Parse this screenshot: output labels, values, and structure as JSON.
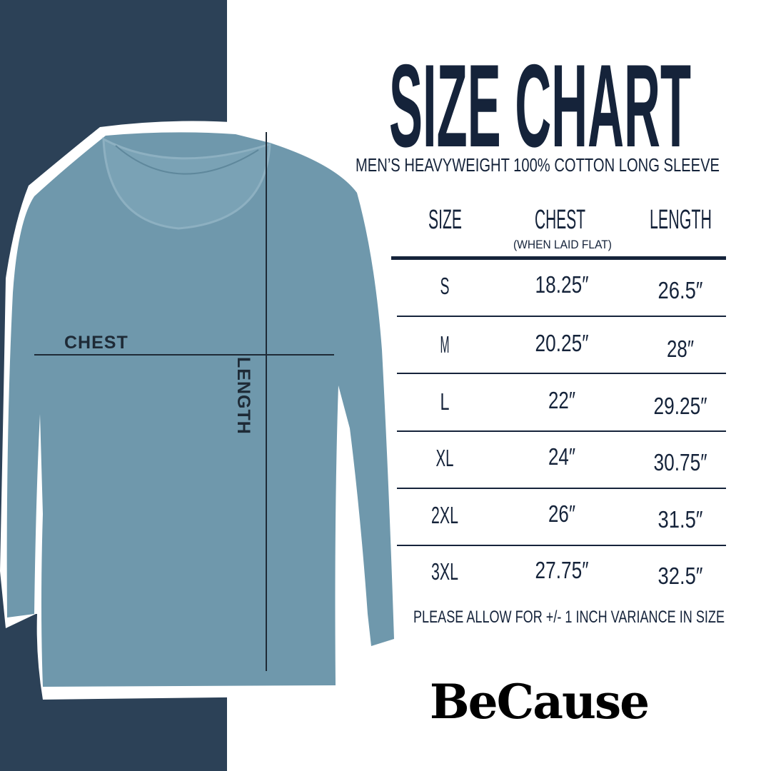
{
  "colors": {
    "panel": "#2c4157",
    "shirt": "#6f98ac",
    "text": "#15233a"
  },
  "header": {
    "title": "SIZE CHART",
    "subtitle": "MEN’S HEAVYWEIGHT 100% COTTON LONG SLEEVE"
  },
  "diagram": {
    "chest_label": "CHEST",
    "length_label": "LENGTH"
  },
  "table": {
    "columns": [
      {
        "label": "SIZE"
      },
      {
        "label": "CHEST",
        "sublabel": "(WHEN LAID FLAT)"
      },
      {
        "label": "LENGTH"
      }
    ],
    "rows": [
      {
        "size": "S",
        "chest": "18.25″",
        "length": "26.5″"
      },
      {
        "size": "M",
        "chest": "20.25″",
        "length": "28″"
      },
      {
        "size": "L",
        "chest": "22″",
        "length": "29.25″"
      },
      {
        "size": "XL",
        "chest": "24″",
        "length": "30.75″"
      },
      {
        "size": "2XL",
        "chest": "26″",
        "length": "31.5″"
      },
      {
        "size": "3XL",
        "chest": "27.75″",
        "length": "32.5″"
      }
    ]
  },
  "note": "PLEASE ALLOW FOR +/- 1 INCH VARIANCE IN SIZE",
  "brand": {
    "logo": "BeCause"
  }
}
